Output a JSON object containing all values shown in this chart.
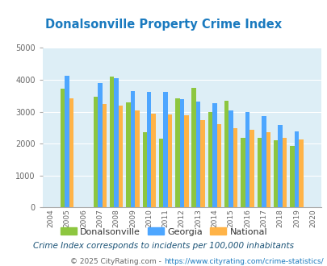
{
  "title": "Donalsonville Property Crime Index",
  "years": [
    2004,
    2005,
    2006,
    2007,
    2008,
    2009,
    2010,
    2011,
    2012,
    2013,
    2014,
    2015,
    2016,
    2017,
    2018,
    2019,
    2020
  ],
  "donalsonville": [
    null,
    3720,
    null,
    3480,
    4100,
    3300,
    2350,
    2150,
    3430,
    3750,
    3000,
    3340,
    2180,
    2190,
    2100,
    1920,
    null
  ],
  "georgia": [
    null,
    4130,
    null,
    3900,
    4050,
    3650,
    3630,
    3620,
    3400,
    3330,
    3270,
    3040,
    3000,
    2870,
    2580,
    2390,
    null
  ],
  "national": [
    null,
    3430,
    null,
    3240,
    3200,
    3040,
    2950,
    2920,
    2880,
    2730,
    2610,
    2480,
    2440,
    2350,
    2190,
    2130,
    null
  ],
  "ylim": [
    0,
    5000
  ],
  "yticks": [
    0,
    1000,
    2000,
    3000,
    4000,
    5000
  ],
  "bar_width": 0.27,
  "color_donalsonville": "#8dc63f",
  "color_georgia": "#4da6ff",
  "color_national": "#ffb347",
  "bg_color": "#ddeef6",
  "title_color": "#1a7abf",
  "subtitle": "Crime Index corresponds to incidents per 100,000 inhabitants",
  "footer_prefix": "© 2025 CityRating.com - ",
  "footer_url": "https://www.cityrating.com/crime-statistics/",
  "subtitle_color": "#1a5276",
  "footer_prefix_color": "#666666",
  "footer_url_color": "#1a7abf"
}
